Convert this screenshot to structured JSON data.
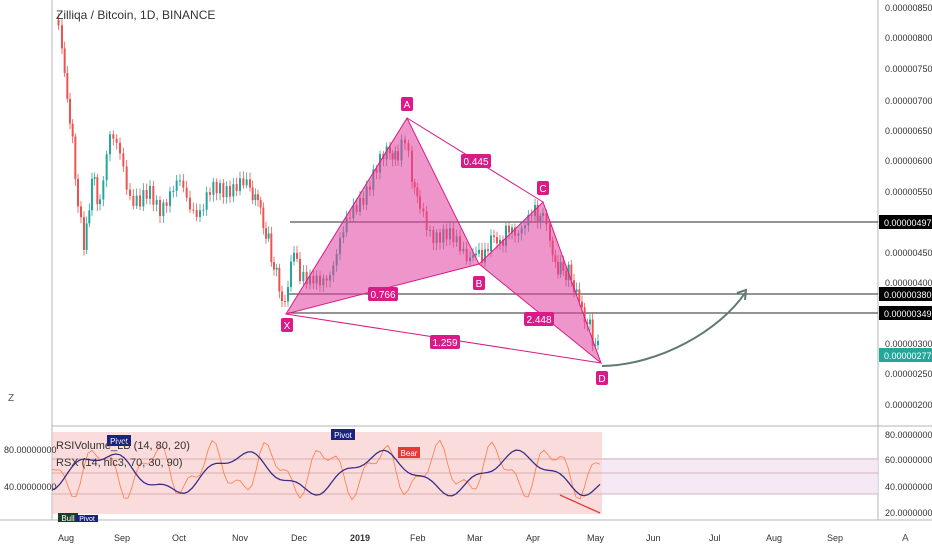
{
  "header": {
    "title": "Zilliqa / Bitcoin, 1D, BINANCE"
  },
  "indicators": {
    "line1": "RSIVolume_LB (14, 80, 20)",
    "line2": "RSX (14, hlc3, 70, 30, 90)"
  },
  "price_axis": [
    "0.00000850",
    "0.00000800",
    "0.00000750",
    "0.00000700",
    "0.00000650",
    "0.00000600",
    "0.00000550",
    "0.00000450",
    "0.00000400",
    "0.00000300",
    "0.00000250",
    "0.00000200"
  ],
  "price_tags": [
    {
      "value": "0.00000497",
      "bg": "#000000"
    },
    {
      "value": "0.00000380",
      "bg": "#000000"
    },
    {
      "value": "0.00000349",
      "bg": "#000000"
    },
    {
      "value": "0.00000277",
      "bg": "#26a69a"
    }
  ],
  "indicator_axis_left": [
    "80.00000000",
    "40.00000000"
  ],
  "indicator_axis_right": [
    "80.00000000",
    "60.00000000",
    "40.00000000",
    "20.00000000"
  ],
  "time_axis": [
    "Aug",
    "Sep",
    "Oct",
    "Nov",
    "Dec",
    "2019",
    "Feb",
    "Mar",
    "Apr",
    "May",
    "Jun",
    "Jul",
    "Aug",
    "Sep"
  ],
  "pattern_points": [
    "X",
    "A",
    "B",
    "C",
    "D"
  ],
  "ratios": [
    "0.766",
    "0.445",
    "2.448",
    "1.259"
  ],
  "indicator_labels": [
    "Pivot",
    "Pivot",
    "Bear",
    "Bull",
    "Pivot"
  ],
  "corner_left": "Z",
  "corner_right": "A",
  "colors": {
    "up": "#26a69a",
    "down": "#ef5350",
    "pattern": "#d81b86",
    "fill": "#e040a0"
  }
}
